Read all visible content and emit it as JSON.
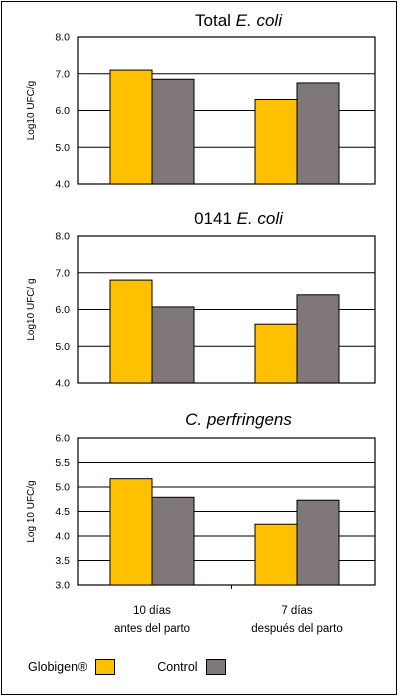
{
  "chart_data": [
    {
      "type": "bar",
      "title": "Total",
      "title_italic": "E. coli",
      "ylabel": "Log10 UFC/g",
      "ylim": [
        4.0,
        8.0
      ],
      "yticks": [
        "4.0",
        "5.0",
        "6.0",
        "7.0",
        "8.0"
      ],
      "categories": [
        "10 días antes del parto",
        "7 días después del parto"
      ],
      "series": [
        {
          "name": "Globigen®",
          "values": [
            7.1,
            6.3
          ]
        },
        {
          "name": "Control",
          "values": [
            6.85,
            6.75
          ]
        }
      ]
    },
    {
      "type": "bar",
      "title": "0141",
      "title_italic": "E. coli",
      "ylabel": "Log10 UFC/ g",
      "ylim": [
        4.0,
        8.0
      ],
      "yticks": [
        "4.0",
        "5.0",
        "6.0",
        "7.0",
        "8.0"
      ],
      "categories": [
        "10 días antes del parto",
        "7 días después del parto"
      ],
      "series": [
        {
          "name": "Globigen®",
          "values": [
            6.8,
            5.6
          ]
        },
        {
          "name": "Control",
          "values": [
            6.07,
            6.4
          ]
        }
      ]
    },
    {
      "type": "bar",
      "title": "",
      "title_italic": "C. perfringens",
      "ylabel": "Log 10 UFC/g",
      "ylim": [
        3.0,
        6.0
      ],
      "yticks": [
        "3.0",
        "3.5",
        "4.0",
        "4.5",
        "5.0",
        "5.5",
        "6.0"
      ],
      "categories": [
        "10 días antes del parto",
        "7 días después del parto"
      ],
      "series": [
        {
          "name": "Globigen®",
          "values": [
            5.17,
            4.24
          ]
        },
        {
          "name": "Control",
          "values": [
            4.79,
            4.73
          ]
        }
      ]
    }
  ],
  "x_labels": [
    {
      "line1": "10 días",
      "line2": "antes del parto"
    },
    {
      "line1": "7 días",
      "line2": "después del parto"
    }
  ],
  "legend": [
    {
      "label": "Globigen®",
      "color": "#FFC000"
    },
    {
      "label": "Control",
      "color": "#7F7778"
    }
  ],
  "colors": {
    "globigen": "#FFC000",
    "control": "#7F7778",
    "border": "#000000"
  }
}
